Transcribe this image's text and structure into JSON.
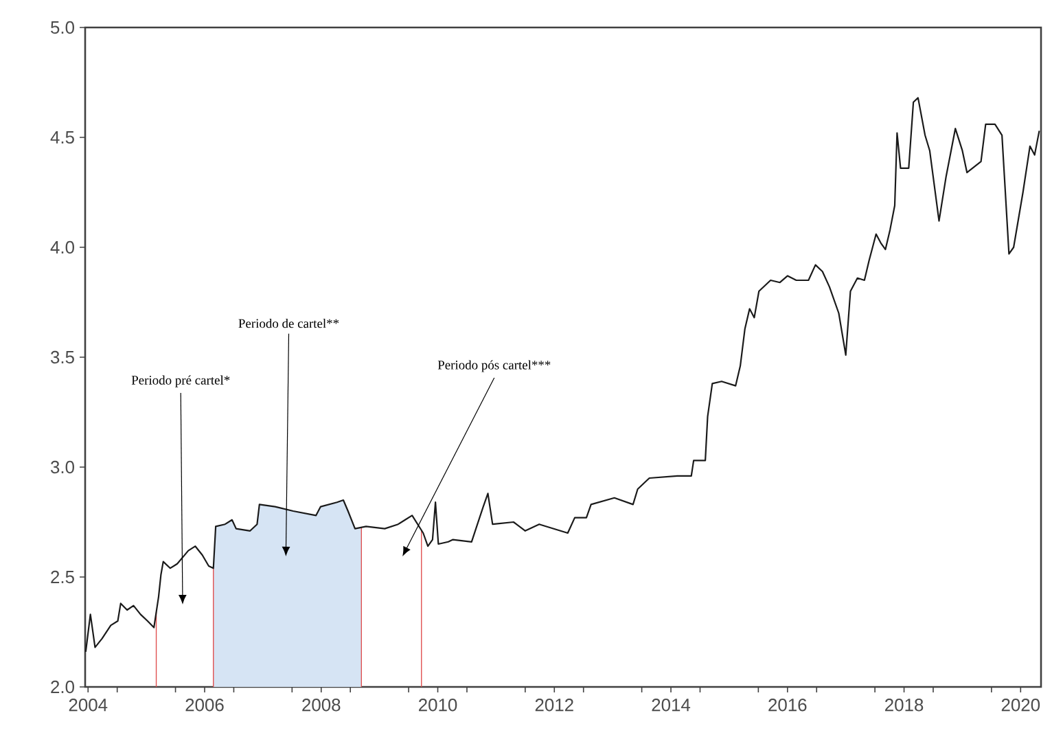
{
  "chart_data": {
    "type": "line",
    "x": [
      2004.46,
      2004.54,
      2004.62,
      2004.74,
      2004.89,
      2005.01,
      2005.06,
      2005.17,
      2005.28,
      2005.4,
      2005.52,
      2005.63,
      2005.71,
      2005.75,
      2005.79,
      2005.91,
      2006.03,
      2006.22,
      2006.34,
      2006.46,
      2006.57,
      2006.65,
      2006.69,
      2006.85,
      2006.97,
      2007.04,
      2007.28,
      2007.4,
      2007.44,
      2007.71,
      2008.02,
      2008.41,
      2008.49,
      2008.77,
      2008.88,
      2008.96,
      2009.08,
      2009.27,
      2009.59,
      2009.82,
      2009.94,
      2010.06,
      2010.25,
      2010.33,
      2010.41,
      2010.46,
      2010.51,
      2010.68,
      2010.76,
      2011.08,
      2011.28,
      2011.36,
      2011.44,
      2011.8,
      2012.0,
      2012.24,
      2012.73,
      2012.85,
      2013.05,
      2013.13,
      2013.53,
      2013.85,
      2013.93,
      2014.13,
      2014.61,
      2014.85,
      2014.89,
      2015.09,
      2015.13,
      2015.21,
      2015.37,
      2015.61,
      2015.69,
      2015.77,
      2015.85,
      2015.93,
      2016.01,
      2016.21,
      2016.37,
      2016.5,
      2016.65,
      2016.86,
      2016.98,
      2017.1,
      2017.22,
      2017.38,
      2017.5,
      2017.58,
      2017.7,
      2017.82,
      2017.9,
      2018.02,
      2018.1,
      2018.18,
      2018.26,
      2018.34,
      2018.38,
      2018.44,
      2018.58,
      2018.66,
      2018.74,
      2018.86,
      2018.94,
      2019.1,
      2019.22,
      2019.38,
      2019.5,
      2019.58,
      2019.82,
      2019.9,
      2020.06,
      2020.18,
      2020.3,
      2020.38,
      2020.54,
      2020.66,
      2020.74,
      2020.82
    ],
    "series": [
      {
        "color": "#1a1a1a",
        "values": [
          2.16,
          2.33,
          2.18,
          2.22,
          2.28,
          2.3,
          2.38,
          2.35,
          2.37,
          2.33,
          2.3,
          2.27,
          2.41,
          2.51,
          2.57,
          2.54,
          2.56,
          2.62,
          2.64,
          2.6,
          2.55,
          2.54,
          2.73,
          2.74,
          2.76,
          2.72,
          2.71,
          2.74,
          2.83,
          2.82,
          2.8,
          2.78,
          2.82,
          2.84,
          2.85,
          2.8,
          2.72,
          2.73,
          2.72,
          2.74,
          2.76,
          2.78,
          2.7,
          2.64,
          2.67,
          2.84,
          2.65,
          2.66,
          2.67,
          2.66,
          2.82,
          2.88,
          2.74,
          2.75,
          2.71,
          2.74,
          2.7,
          2.77,
          2.77,
          2.83,
          2.86,
          2.83,
          2.9,
          2.95,
          2.96,
          2.96,
          3.03,
          3.03,
          3.23,
          3.38,
          3.39,
          3.37,
          3.46,
          3.63,
          3.72,
          3.68,
          3.8,
          3.85,
          3.84,
          3.87,
          3.85,
          3.85,
          3.92,
          3.89,
          3.82,
          3.7,
          3.51,
          3.8,
          3.86,
          3.85,
          3.94,
          4.06,
          4.02,
          3.99,
          4.08,
          4.19,
          4.52,
          4.36,
          4.36,
          4.66,
          4.68,
          4.51,
          4.44,
          4.12,
          4.32,
          4.54,
          4.44,
          4.34,
          4.39,
          4.56,
          4.56,
          4.51,
          3.97,
          4.0,
          4.25,
          4.46,
          4.42,
          4.53
        ]
      }
    ],
    "xlim": [
      2004.45,
      2020.85
    ],
    "ylim": [
      2,
      5
    ],
    "xticks": [
      {
        "value": 2004.5,
        "label": "2004"
      },
      {
        "value": 2005,
        "label": null
      },
      {
        "value": 2006,
        "label": null
      },
      {
        "value": 2006.5,
        "label": "2006"
      },
      {
        "value": 2007,
        "label": null
      },
      {
        "value": 2008,
        "label": null
      },
      {
        "value": 2008.5,
        "label": "2008"
      },
      {
        "value": 2009,
        "label": null
      },
      {
        "value": 2010,
        "label": null
      },
      {
        "value": 2010.5,
        "label": "2010"
      },
      {
        "value": 2011,
        "label": null
      },
      {
        "value": 2012,
        "label": null
      },
      {
        "value": 2012.5,
        "label": "2012"
      },
      {
        "value": 2013,
        "label": null
      },
      {
        "value": 2014,
        "label": null
      },
      {
        "value": 2014.5,
        "label": "2014"
      },
      {
        "value": 2015,
        "label": null
      },
      {
        "value": 2016,
        "label": null
      },
      {
        "value": 2016.5,
        "label": "2016"
      },
      {
        "value": 2017,
        "label": null
      },
      {
        "value": 2018,
        "label": null
      },
      {
        "value": 2018.5,
        "label": "2018"
      },
      {
        "value": 2019,
        "label": null
      },
      {
        "value": 2020,
        "label": null
      },
      {
        "value": 2020.5,
        "label": "2020"
      }
    ],
    "yticks": [
      {
        "value": 2,
        "label": "2.0"
      },
      {
        "value": 2.5,
        "label": "2.5"
      },
      {
        "value": 3,
        "label": "3.0"
      },
      {
        "value": 3.5,
        "label": "3.5"
      },
      {
        "value": 4,
        "label": "4.0"
      },
      {
        "value": 4.5,
        "label": "4.5"
      },
      {
        "value": 5,
        "label": "5.0"
      }
    ],
    "ref_lines": [
      {
        "axis": "x",
        "value": 2005.67,
        "color": "#e05050"
      },
      {
        "axis": "x",
        "value": 2006.65,
        "color": "#e05050"
      },
      {
        "axis": "x",
        "value": 2009.19,
        "color": "#e05050"
      },
      {
        "axis": "x",
        "value": 2010.22,
        "color": "#e05050"
      }
    ],
    "bands": [
      {
        "axis": "x",
        "from": 2006.65,
        "to": 2009.19,
        "color": "#d6e4f4"
      }
    ],
    "annotations": [
      "Periodo pré cartel*",
      "Periodo de cartel**",
      "Periodo pós cartel***"
    ]
  }
}
